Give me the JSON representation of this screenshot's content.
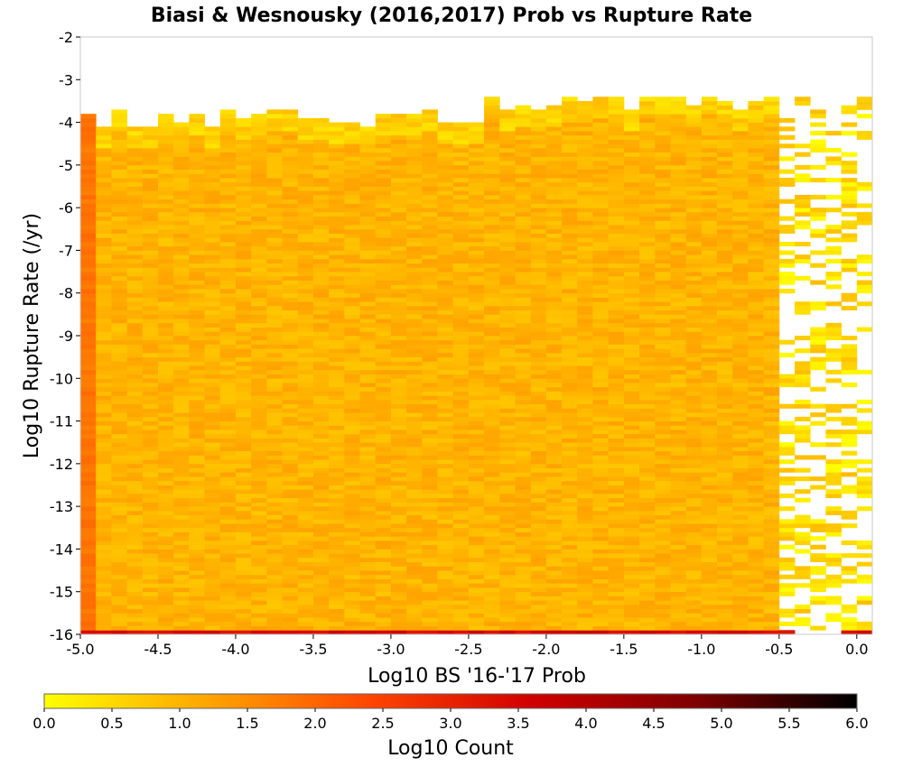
{
  "chart_data": {
    "type": "heatmap",
    "title": "Biasi & Wesnousky (2016,2017) Prob vs Rupture Rate",
    "xlabel": "Log10 BS '16-'17 Prob",
    "ylabel": "Log10 Rupture Rate (/yr)",
    "xlim": [
      -5.0,
      0.1
    ],
    "ylim": [
      -16,
      -2
    ],
    "x_ticks": [
      "-5.0",
      "-4.5",
      "-4.0",
      "-3.5",
      "-3.0",
      "-2.5",
      "-2.0",
      "-1.5",
      "-1.0",
      "-0.5",
      "0.0"
    ],
    "x_tick_values": [
      -5.0,
      -4.5,
      -4.0,
      -3.5,
      -3.0,
      -2.5,
      -2.0,
      -1.5,
      -1.0,
      -0.5,
      0.0
    ],
    "y_ticks": [
      "-2",
      "-3",
      "-4",
      "-5",
      "-6",
      "-7",
      "-8",
      "-9",
      "-10",
      "-11",
      "-12",
      "-13",
      "-14",
      "-15",
      "-16"
    ],
    "y_tick_values": [
      -2,
      -3,
      -4,
      -5,
      -6,
      -7,
      -8,
      -9,
      -10,
      -11,
      -12,
      -13,
      -14,
      -15,
      -16
    ],
    "bin_size": 0.1,
    "colorbar": {
      "label": "Log10 Count",
      "range": [
        0.0,
        6.0
      ],
      "ticks": [
        "0.0",
        "0.5",
        "1.0",
        "1.5",
        "2.0",
        "2.5",
        "3.0",
        "3.5",
        "4.0",
        "4.5",
        "5.0",
        "5.5",
        "6.0"
      ],
      "stops": [
        "#ffff00",
        "#ffa500",
        "#ff4500",
        "#d00000",
        "#800000",
        "#000000"
      ]
    },
    "summary": {
      "main_body_log10_count": 1.0,
      "left_column_x": -5.0,
      "left_column_log10_count": 1.8,
      "bottom_row_y": -16.0,
      "bottom_row_log10_count": 3.5,
      "occupied_rate_range": [
        -16,
        -3.4
      ],
      "sparse_x_range": [
        -0.5,
        0.1
      ]
    }
  }
}
